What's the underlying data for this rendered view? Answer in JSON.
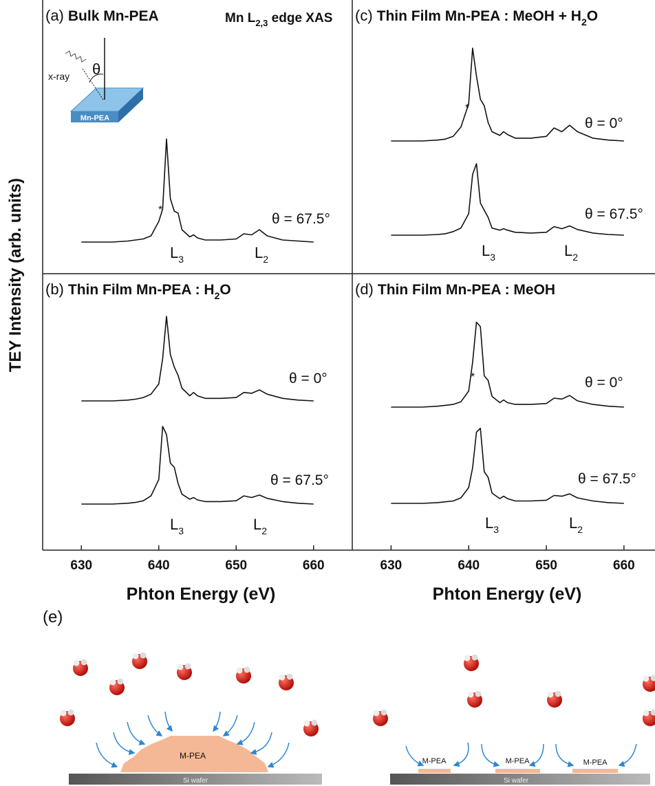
{
  "chart_data": [
    {
      "type": "line",
      "label": "(a)",
      "title": "Bulk Mn-PEA",
      "annotation": {
        "text": "Mn L",
        "sub": "2,3",
        "end": " edge XAS"
      },
      "inset": {
        "beam": "x-ray",
        "angle": "θ",
        "sample": "Mn-PEA"
      },
      "x": [
        630,
        632,
        634,
        636,
        637,
        638,
        639,
        640,
        640.5,
        641,
        641.5,
        642,
        642.5,
        643,
        644,
        644.5,
        645,
        646,
        648,
        650,
        651,
        652,
        653,
        654,
        656,
        658,
        660
      ],
      "xlim": [
        625,
        665
      ],
      "series": [
        {
          "name": "θ = 67.5°",
          "color": "#111111",
          "values": [
            0,
            0,
            0,
            0.01,
            0.02,
            0.03,
            0.06,
            0.2,
            0.32,
            1.0,
            0.42,
            0.3,
            0.28,
            0.12,
            0.05,
            0.07,
            0.04,
            0.02,
            0.02,
            0.03,
            0.08,
            0.07,
            0.12,
            0.06,
            0.02,
            0.01,
            0
          ]
        }
      ],
      "peak_labels": [
        {
          "text": "L",
          "sub": "3"
        },
        {
          "text": "L",
          "sub": "2"
        }
      ],
      "marker": "*"
    },
    {
      "type": "line",
      "label": "(b)",
      "title": "Thin Film Mn-PEA : H",
      "title_sub": "2",
      "title_end": "O",
      "x": [
        630,
        632,
        634,
        636,
        637,
        638,
        639,
        640,
        640.5,
        641,
        641.5,
        642,
        642.5,
        643,
        644,
        644.5,
        645,
        646,
        648,
        650,
        651,
        652,
        653,
        654,
        656,
        658,
        660
      ],
      "xlim": [
        625,
        665
      ],
      "xticks": [
        630,
        640,
        650,
        660
      ],
      "xlabel": "Phton Energy (eV)",
      "series": [
        {
          "name": "θ = 0°",
          "color": "#111111",
          "values": [
            0,
            0,
            0,
            0.01,
            0.02,
            0.04,
            0.08,
            0.2,
            0.5,
            1.0,
            0.55,
            0.4,
            0.3,
            0.15,
            0.06,
            0.1,
            0.06,
            0.03,
            0.03,
            0.04,
            0.1,
            0.09,
            0.13,
            0.08,
            0.03,
            0.01,
            0
          ]
        },
        {
          "name": "θ = 67.5°",
          "color": "#111111",
          "values": [
            0,
            0,
            0,
            0.01,
            0.02,
            0.04,
            0.1,
            0.3,
            0.95,
            0.85,
            0.5,
            0.45,
            0.25,
            0.12,
            0.06,
            0.08,
            0.05,
            0.03,
            0.03,
            0.04,
            0.1,
            0.08,
            0.11,
            0.07,
            0.03,
            0.01,
            0
          ]
        }
      ],
      "peak_labels": [
        {
          "text": "L",
          "sub": "3"
        },
        {
          "text": "L",
          "sub": "2"
        }
      ]
    },
    {
      "type": "line",
      "label": "(c)",
      "title": "Thin Film Mn-PEA : MeOH + H",
      "title_sub": "2",
      "title_end": "O",
      "x": [
        630,
        632,
        634,
        636,
        637,
        638,
        639,
        640,
        640.5,
        641,
        641.5,
        642,
        642.5,
        643,
        644,
        644.5,
        645,
        646,
        648,
        650,
        651,
        652,
        653,
        654,
        656,
        658,
        660
      ],
      "xlim": [
        625,
        664
      ],
      "series": [
        {
          "name": "θ = 0°",
          "color": "#111111",
          "values": [
            0,
            0,
            0,
            0.01,
            0.02,
            0.05,
            0.15,
            0.4,
            1.0,
            0.7,
            0.45,
            0.38,
            0.2,
            0.1,
            0.06,
            0.1,
            0.07,
            0.03,
            0.03,
            0.05,
            0.14,
            0.1,
            0.17,
            0.1,
            0.03,
            0.01,
            0
          ]
        },
        {
          "name": "θ = 67.5°",
          "color": "#111111",
          "values": [
            0,
            0,
            0,
            0.01,
            0.02,
            0.05,
            0.1,
            0.3,
            0.85,
            1.0,
            0.45,
            0.35,
            0.25,
            0.1,
            0.07,
            0.09,
            0.07,
            0.04,
            0.03,
            0.04,
            0.12,
            0.09,
            0.13,
            0.08,
            0.03,
            0.01,
            0
          ]
        }
      ],
      "peak_labels": [
        {
          "text": "L",
          "sub": "3"
        },
        {
          "text": "L",
          "sub": "2"
        }
      ],
      "marker": "*"
    },
    {
      "type": "line",
      "label": "(d)",
      "title": "Thin Film Mn-PEA : MeOH",
      "x": [
        630,
        632,
        634,
        636,
        637,
        638,
        639,
        640,
        640.5,
        641,
        641.5,
        642,
        642.5,
        643,
        644,
        644.5,
        645,
        646,
        648,
        650,
        651,
        652,
        653,
        654,
        656,
        658,
        660
      ],
      "xlim": [
        625,
        664
      ],
      "xticks": [
        630,
        640,
        650,
        660
      ],
      "xlabel": "Phton Energy (eV)",
      "series": [
        {
          "name": "θ = 0°",
          "color": "#111111",
          "values": [
            0,
            0,
            0,
            0.01,
            0.02,
            0.03,
            0.06,
            0.18,
            0.5,
            0.95,
            0.9,
            0.35,
            0.3,
            0.12,
            0.05,
            0.08,
            0.05,
            0.03,
            0.03,
            0.04,
            0.1,
            0.09,
            0.13,
            0.07,
            0.03,
            0.01,
            0
          ]
        },
        {
          "name": "θ = 67.5°",
          "color": "#111111",
          "values": [
            0,
            0,
            0,
            0.01,
            0.02,
            0.03,
            0.07,
            0.2,
            0.45,
            0.9,
            0.95,
            0.4,
            0.33,
            0.13,
            0.06,
            0.09,
            0.06,
            0.03,
            0.03,
            0.04,
            0.1,
            0.09,
            0.12,
            0.07,
            0.03,
            0.01,
            0
          ]
        }
      ],
      "peak_labels": [
        {
          "text": "L",
          "sub": "3"
        },
        {
          "text": "L",
          "sub": "2"
        }
      ],
      "marker": "*"
    }
  ],
  "figure": {
    "y_label": "TEY Intensity (arb. units)"
  },
  "illustration": {
    "label": "(e)",
    "left": {
      "film": "M-PEA",
      "substrate": "Si wafer"
    },
    "right": {
      "films": [
        "M-PEA",
        "M-PEA",
        "M-PEA"
      ],
      "substrate": "Si wafer"
    }
  }
}
